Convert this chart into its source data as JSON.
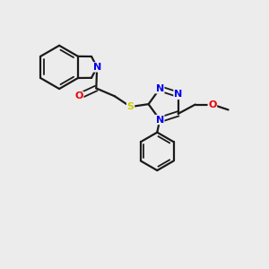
{
  "background_color": "#ececec",
  "bond_color": "#1a1a1a",
  "atom_colors": {
    "N": "#0000ee",
    "O": "#ee0000",
    "S": "#cccc00",
    "C": "#1a1a1a"
  },
  "figsize": [
    3.0,
    3.0
  ],
  "dpi": 100
}
